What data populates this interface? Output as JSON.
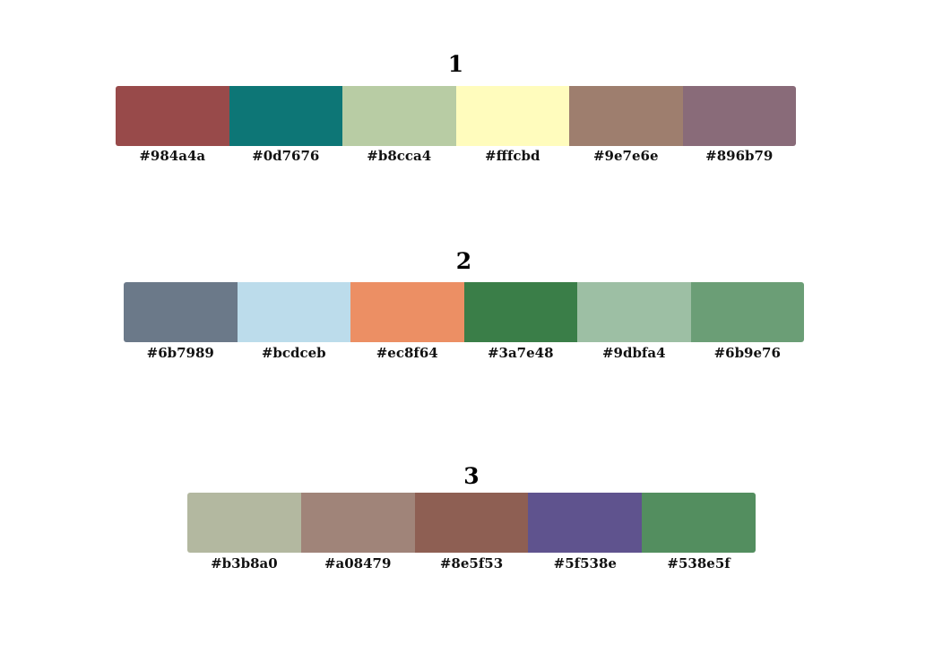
{
  "palettes": [
    {
      "title": "1",
      "swatches": [
        {
          "hex": "#984a4a",
          "label": "#984a4a"
        },
        {
          "hex": "#0d7676",
          "label": "#0d7676"
        },
        {
          "hex": "#b8cca4",
          "label": "#b8cca4"
        },
        {
          "hex": "#fffcbd",
          "label": "#fffcbd"
        },
        {
          "hex": "#9e7e6e",
          "label": "#9e7e6e"
        },
        {
          "hex": "#896b79",
          "label": "#896b79"
        }
      ]
    },
    {
      "title": "2",
      "swatches": [
        {
          "hex": "#6b7989",
          "label": "#6b7989"
        },
        {
          "hex": "#bcdceb",
          "label": "#bcdceb"
        },
        {
          "hex": "#ec8f64",
          "label": "#ec8f64"
        },
        {
          "hex": "#3a7e48",
          "label": "#3a7e48"
        },
        {
          "hex": "#9dbfa4",
          "label": "#9dbfa4"
        },
        {
          "hex": "#6b9e76",
          "label": "#6b9e76"
        }
      ]
    },
    {
      "title": "3",
      "swatches": [
        {
          "hex": "#b3b8a0",
          "label": "#b3b8a0"
        },
        {
          "hex": "#a08479",
          "label": "#a08479"
        },
        {
          "hex": "#8e5f53",
          "label": "#8e5f53"
        },
        {
          "hex": "#5f538e",
          "label": "#5f538e"
        },
        {
          "hex": "#538e5f",
          "label": "#538e5f"
        }
      ]
    }
  ]
}
